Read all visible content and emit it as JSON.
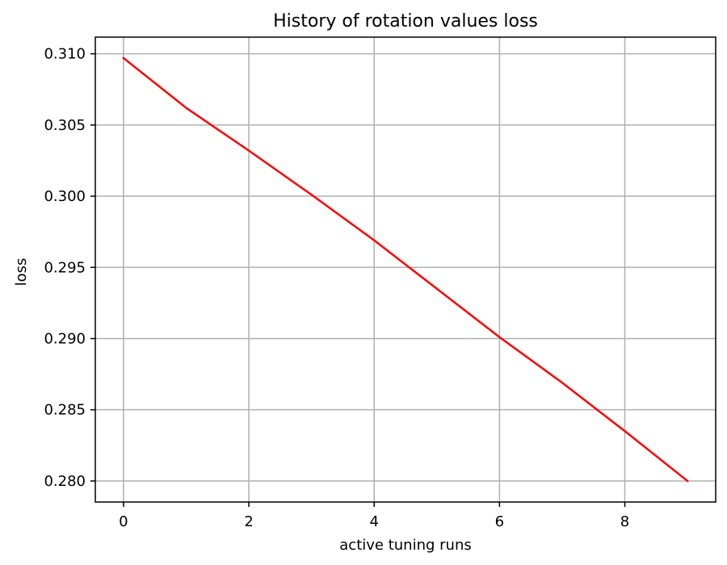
{
  "chart_data": {
    "type": "line",
    "title": "History of rotation values loss",
    "xlabel": "active tuning runs",
    "ylabel": "loss",
    "xlim": [
      -0.45,
      9.45
    ],
    "ylim": [
      0.27852,
      0.31117
    ],
    "x_ticks": [
      0,
      2,
      4,
      6,
      8
    ],
    "y_ticks": [
      0.28,
      0.285,
      0.29,
      0.295,
      0.3,
      0.305,
      0.31
    ],
    "x_tick_labels": [
      "0",
      "2",
      "4",
      "6",
      "8"
    ],
    "y_tick_labels": [
      "0.280",
      "0.285",
      "0.290",
      "0.295",
      "0.300",
      "0.305",
      "0.310"
    ],
    "grid": true,
    "series": [
      {
        "color": "#ff0000",
        "x": [
          0,
          1,
          2,
          3,
          4,
          5,
          6,
          7,
          8,
          9
        ],
        "y": [
          0.3097,
          0.3062,
          0.3032,
          0.3001,
          0.2969,
          0.2935,
          0.2901,
          0.2869,
          0.2835,
          0.28
        ]
      }
    ]
  }
}
